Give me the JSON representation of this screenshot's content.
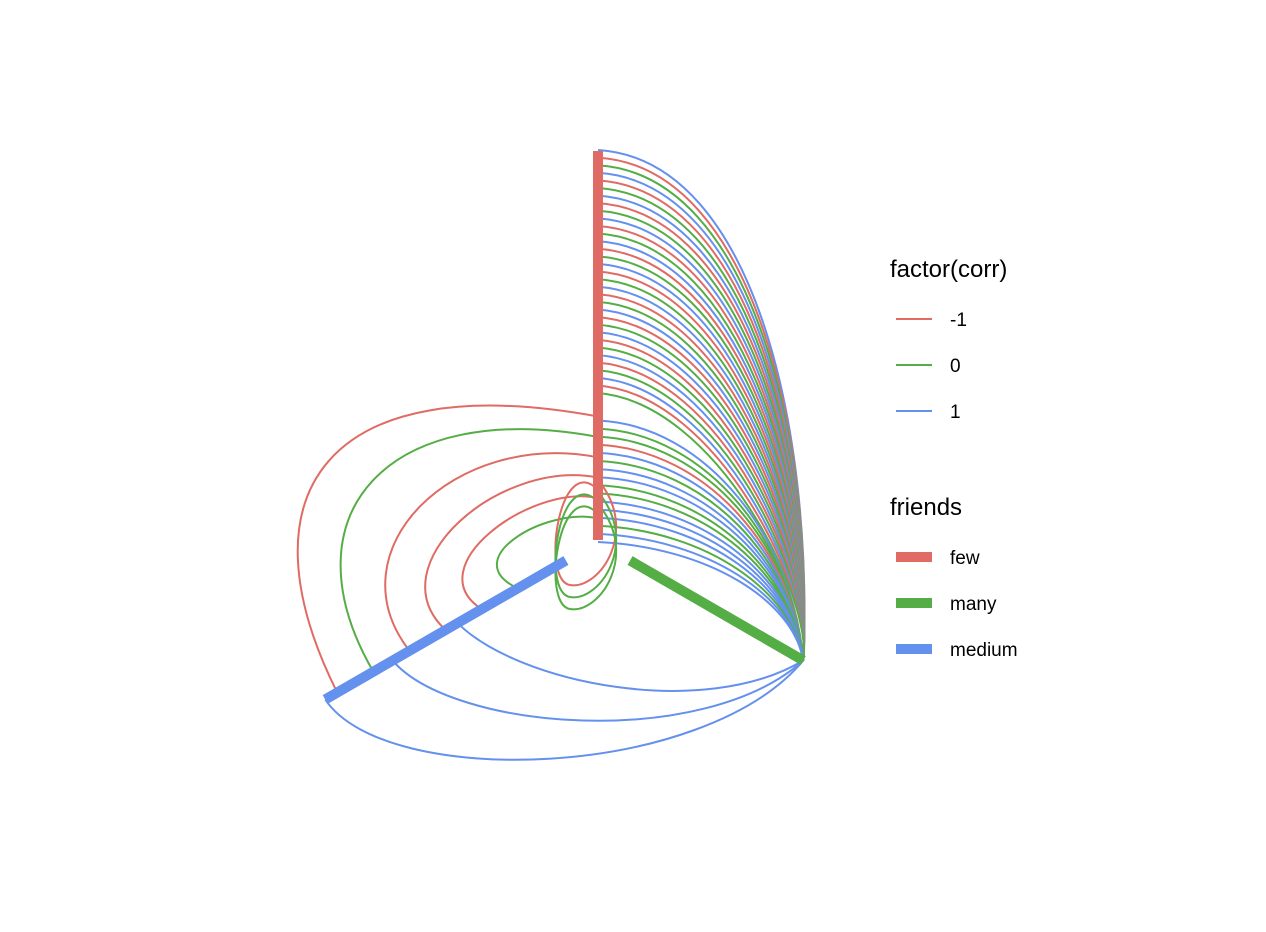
{
  "chart_data": {
    "type": "hive-plot",
    "legends": [
      {
        "title": "factor(corr)",
        "kind": "line",
        "entries": [
          {
            "label": "-1",
            "color": "#E06B64"
          },
          {
            "label": "0",
            "color": "#55AD45"
          },
          {
            "label": "1",
            "color": "#6490EE"
          }
        ]
      },
      {
        "title": "friends",
        "kind": "axis",
        "entries": [
          {
            "label": "few",
            "color": "#E06B64"
          },
          {
            "label": "many",
            "color": "#55AD45"
          },
          {
            "label": "medium",
            "color": "#6490EE"
          }
        ]
      }
    ],
    "axes": [
      {
        "name": "few",
        "color": "#E06B64",
        "angle_deg": 90
      },
      {
        "name": "many",
        "color": "#55AD45",
        "angle_deg": -30
      },
      {
        "name": "medium",
        "color": "#6490EE",
        "angle_deg": 210
      }
    ],
    "edge_groups": [
      {
        "from": "few",
        "to": "many",
        "pattern": [
          "1",
          "-1",
          "0"
        ],
        "count": 33,
        "r_from": [
          1.0,
          0.38
        ]
      },
      {
        "from": "few",
        "to": "many",
        "pattern": [
          "1",
          "0",
          "0",
          "-1",
          "1",
          "0",
          "1",
          "1",
          "0",
          "0",
          "1",
          "1",
          "1",
          "0",
          "1",
          "1"
        ],
        "count": 16,
        "r_from": [
          0.31,
          0.0
        ]
      },
      {
        "from": "few",
        "to": "medium",
        "pattern": [
          "-1",
          "0",
          "-1",
          "-1"
        ],
        "count": 6,
        "r_from": [
          0.32,
          0.06
        ]
      },
      {
        "from": "medium",
        "to": "many",
        "pattern": [
          "1",
          "1",
          "1"
        ],
        "count": 3,
        "r_from": [
          0.0,
          0.0
        ]
      }
    ]
  }
}
